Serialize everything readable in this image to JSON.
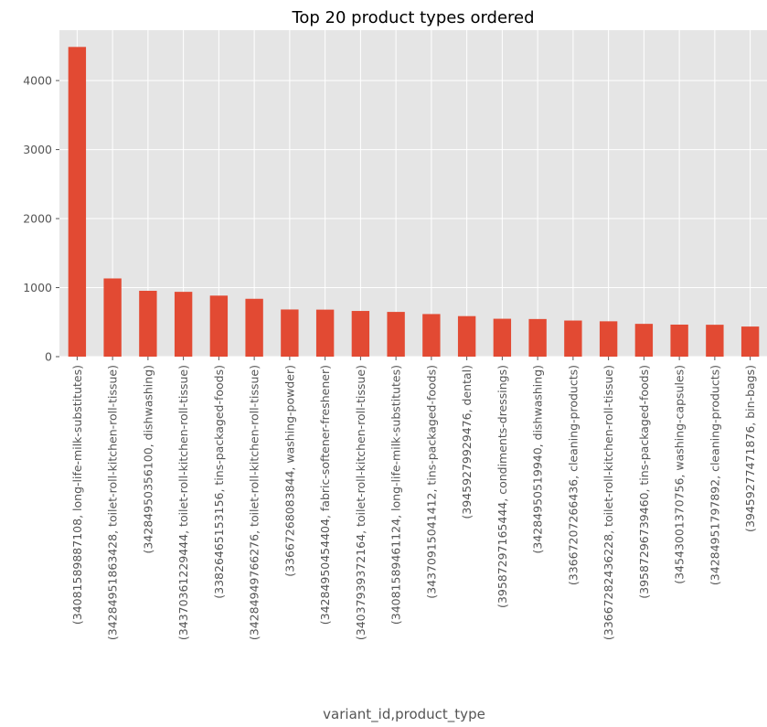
{
  "chart_data": {
    "type": "bar",
    "title": "Top 20 product types ordered",
    "xlabel": "variant_id,product_type",
    "ylabel": "",
    "ylim": [
      0,
      4730
    ],
    "yticks": [
      0,
      1000,
      2000,
      3000,
      4000
    ],
    "grid": true,
    "bar_color": "#E24A33",
    "background_color": "#E5E5E5",
    "grid_color": "#FFFFFF",
    "categories": [
      "(34081589887108, long-life-milk-substitutes)",
      "(34284951863428, toilet-roll-kitchen-roll-tissue)",
      "(34284950356100, dishwashing)",
      "(34370361229444, toilet-roll-kitchen-roll-tissue)",
      "(33826465153156, tins-packaged-foods)",
      "(34284949766276, toilet-roll-kitchen-roll-tissue)",
      "(33667268083844, washing-powder)",
      "(34284950454404, fabric-softener-freshener)",
      "(34037939372164, toilet-roll-kitchen-roll-tissue)",
      "(34081589461124, long-life-milk-substitutes)",
      "(34370915041412, tins-packaged-foods)",
      "(39459279929476, dental)",
      "(39587297165444, condiments-dressings)",
      "(34284950519940, dishwashing)",
      "(33667207266436, cleaning-products)",
      "(33667282436228, toilet-roll-kitchen-roll-tissue)",
      "(39587296739460, tins-packaged-foods)",
      "(34543001370756, washing-capsules)",
      "(34284951797892, cleaning-products)",
      "(39459277471876, bin-bags)"
    ],
    "values": [
      4487,
      1133,
      954,
      939,
      884,
      838,
      683,
      681,
      662,
      648,
      617,
      587,
      549,
      545,
      523,
      512,
      475,
      464,
      462,
      436
    ]
  }
}
